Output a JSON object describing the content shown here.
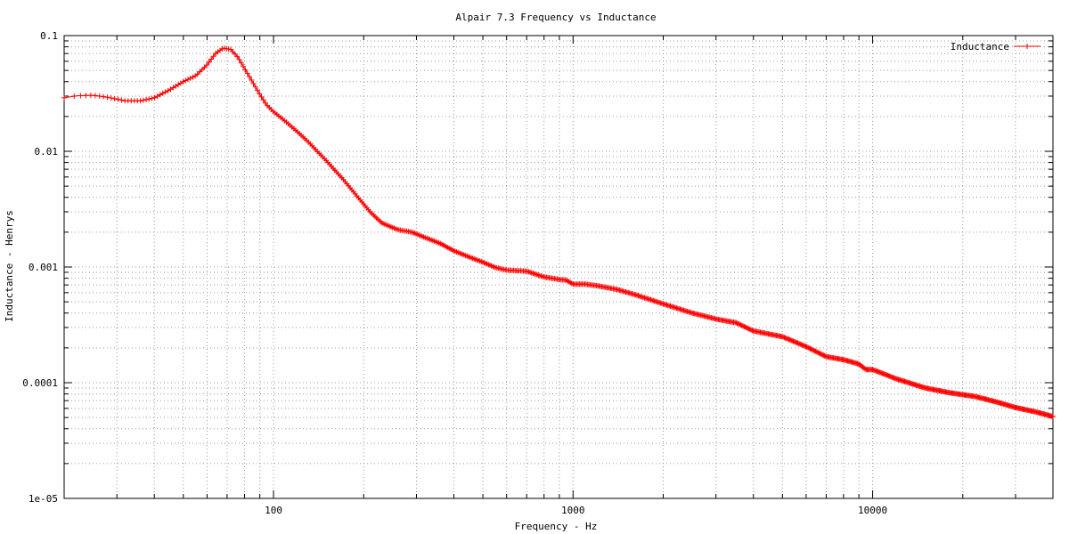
{
  "chart_data": {
    "type": "line",
    "title": "Alpair 7.3 Frequency vs Inductance",
    "xlabel": "Frequency - Hz",
    "ylabel": "Inductance - Henrys",
    "x_scale": "log",
    "y_scale": "log",
    "xlim": [
      20,
      40000
    ],
    "ylim": [
      1e-05,
      0.1
    ],
    "x_ticks": [
      {
        "value": 100,
        "label": "100"
      },
      {
        "value": 1000,
        "label": "1000"
      },
      {
        "value": 10000,
        "label": "10000"
      }
    ],
    "y_ticks": [
      {
        "value": 0.1,
        "label": "0.1"
      },
      {
        "value": 0.01,
        "label": "0.01"
      },
      {
        "value": 0.001,
        "label": "0.001"
      },
      {
        "value": 0.0001,
        "label": "0.0001"
      },
      {
        "value": 1e-05,
        "label": "1e-05"
      }
    ],
    "grid": true,
    "legend_position": "top-right",
    "series": [
      {
        "name": "Inductance",
        "color": "#ff0000",
        "marker": "plus",
        "points": [
          [
            20,
            0.029
          ],
          [
            22,
            0.0302
          ],
          [
            25,
            0.0305
          ],
          [
            28,
            0.0293
          ],
          [
            32,
            0.0273
          ],
          [
            36,
            0.0273
          ],
          [
            40,
            0.029
          ],
          [
            45,
            0.034
          ],
          [
            50,
            0.04
          ],
          [
            55,
            0.045
          ],
          [
            60,
            0.056
          ],
          [
            64,
            0.07
          ],
          [
            68,
            0.078
          ],
          [
            72,
            0.076
          ],
          [
            76,
            0.065
          ],
          [
            80,
            0.052
          ],
          [
            85,
            0.04
          ],
          [
            90,
            0.031
          ],
          [
            95,
            0.025
          ],
          [
            100,
            0.022
          ],
          [
            110,
            0.018
          ],
          [
            120,
            0.0148
          ],
          [
            130,
            0.0122
          ],
          [
            150,
            0.0083
          ],
          [
            170,
            0.0058
          ],
          [
            190,
            0.0041
          ],
          [
            210,
            0.003
          ],
          [
            230,
            0.0024
          ],
          [
            260,
            0.0021
          ],
          [
            290,
            0.002
          ],
          [
            320,
            0.0018
          ],
          [
            360,
            0.0016
          ],
          [
            400,
            0.00138
          ],
          [
            450,
            0.00122
          ],
          [
            500,
            0.0011
          ],
          [
            550,
            0.00099
          ],
          [
            600,
            0.00094
          ],
          [
            700,
            0.00092
          ],
          [
            800,
            0.00082
          ],
          [
            900,
            0.00078
          ],
          [
            950,
            0.00077
          ],
          [
            1000,
            0.00071
          ],
          [
            1100,
            0.00071
          ],
          [
            1200,
            0.00069
          ],
          [
            1400,
            0.00064
          ],
          [
            1600,
            0.00058
          ],
          [
            2000,
            0.00048
          ],
          [
            2500,
            0.0004
          ],
          [
            3000,
            0.000355
          ],
          [
            3500,
            0.00033
          ],
          [
            4000,
            0.00028
          ],
          [
            5000,
            0.00025
          ],
          [
            6000,
            0.000205
          ],
          [
            7000,
            0.000168
          ],
          [
            8000,
            0.000158
          ],
          [
            9000,
            0.000145
          ],
          [
            9500,
            0.00013
          ],
          [
            10000,
            0.00013
          ],
          [
            12000,
            0.000108
          ],
          [
            15000,
            9e-05
          ],
          [
            18000,
            8.2e-05
          ],
          [
            22000,
            7.6e-05
          ],
          [
            26000,
            6.8e-05
          ],
          [
            30000,
            6.1e-05
          ],
          [
            35000,
            5.6e-05
          ],
          [
            40000,
            5.1e-05
          ]
        ]
      }
    ]
  }
}
